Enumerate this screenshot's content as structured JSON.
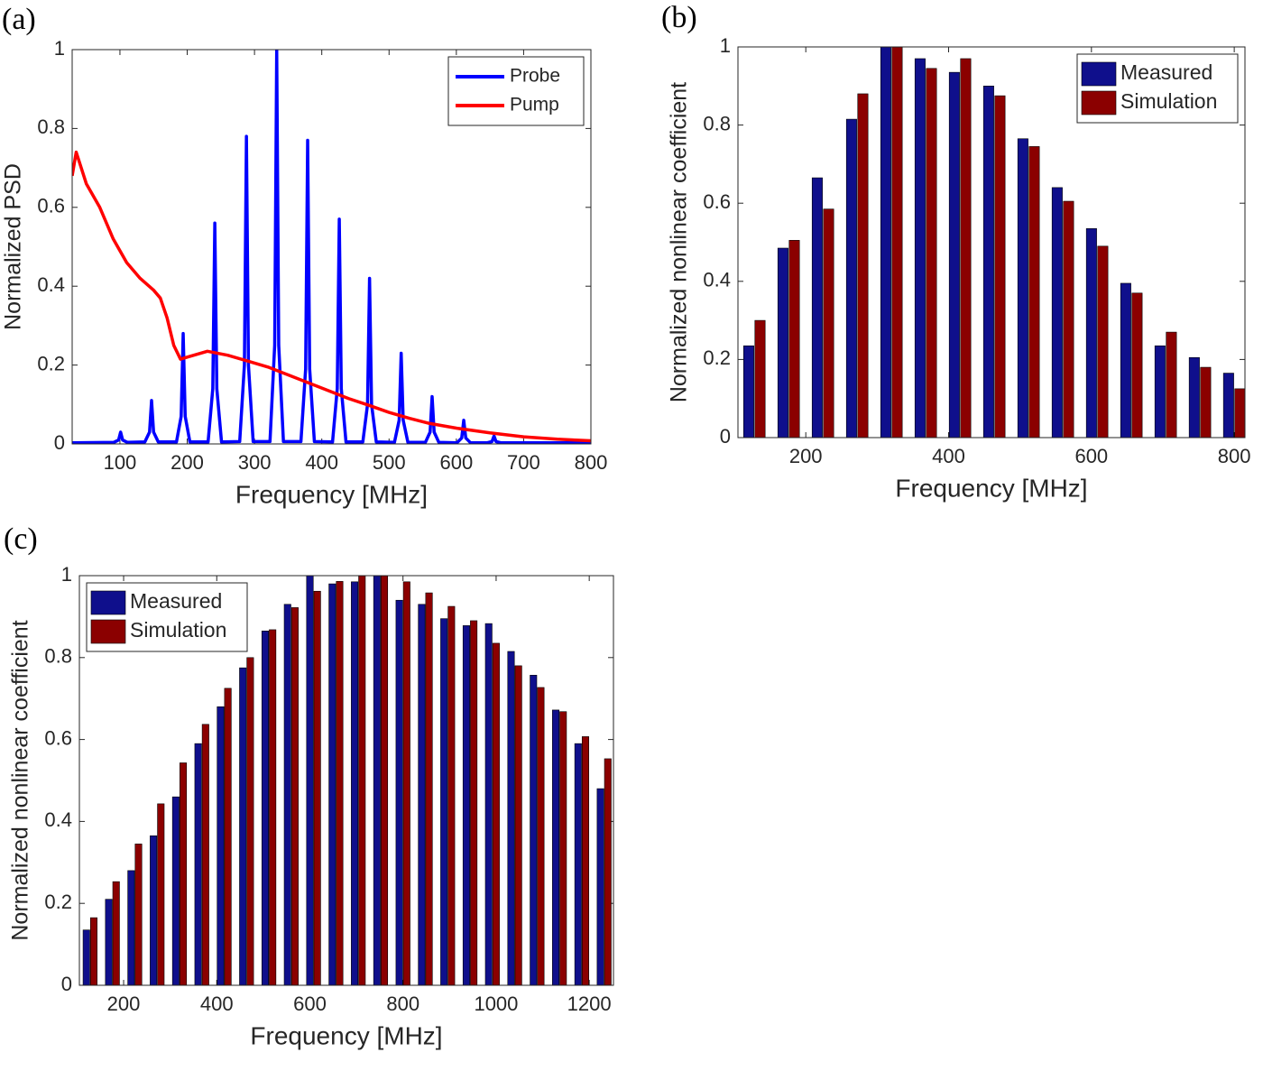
{
  "chart_data": [
    {
      "type": "line",
      "panel_label": "(a)",
      "xlabel": "Frequency [MHz]",
      "ylabel": "Normalized PSD",
      "xlim": [
        29,
        800
      ],
      "ylim": [
        0,
        1
      ],
      "xticks": [
        100,
        200,
        300,
        400,
        500,
        600,
        700,
        800
      ],
      "yticks": [
        0,
        0.2,
        0.4,
        0.6,
        0.8,
        1
      ],
      "legend": "upper right",
      "series": [
        {
          "name": "Probe",
          "color": "#0000ff",
          "x": [
            29,
            91,
            98,
            101,
            104,
            111,
            137,
            144,
            147,
            150,
            157,
            184,
            191,
            194,
            197,
            204,
            231,
            238,
            241,
            244,
            251,
            278,
            285,
            288,
            291,
            298,
            323,
            330,
            333,
            336,
            343,
            369,
            376,
            379,
            382,
            389,
            416,
            423,
            426,
            429,
            436,
            461,
            468,
            471,
            474,
            481,
            508,
            515,
            518,
            521,
            528,
            554,
            561,
            564,
            567,
            574,
            601,
            608,
            611,
            614,
            621,
            646,
            653,
            656,
            659,
            666,
            800
          ],
          "values": [
            0.003,
            0.004,
            0.01,
            0.03,
            0.01,
            0.004,
            0.005,
            0.03,
            0.11,
            0.03,
            0.005,
            0.005,
            0.07,
            0.28,
            0.07,
            0.005,
            0.005,
            0.14,
            0.56,
            0.14,
            0.005,
            0.006,
            0.2,
            0.78,
            0.2,
            0.006,
            0.006,
            0.25,
            1,
            0.25,
            0.006,
            0.006,
            0.19,
            0.77,
            0.19,
            0.006,
            0.005,
            0.14,
            0.57,
            0.14,
            0.005,
            0.005,
            0.1,
            0.42,
            0.1,
            0.005,
            0.004,
            0.06,
            0.23,
            0.06,
            0.004,
            0.004,
            0.03,
            0.12,
            0.03,
            0.004,
            0.003,
            0.015,
            0.06,
            0.015,
            0.003,
            0.003,
            0.006,
            0.02,
            0.006,
            0.003,
            0.003
          ]
        },
        {
          "name": "Pump",
          "color": "#ff0000",
          "x": [
            29,
            35,
            50,
            70,
            90,
            110,
            130,
            150,
            160,
            170,
            180,
            190,
            200,
            230,
            260,
            290,
            320,
            350,
            380,
            410,
            440,
            470,
            500,
            530,
            560,
            600,
            650,
            700,
            750,
            800
          ],
          "values": [
            0.68,
            0.74,
            0.66,
            0.6,
            0.52,
            0.46,
            0.42,
            0.39,
            0.37,
            0.32,
            0.25,
            0.215,
            0.22,
            0.235,
            0.225,
            0.21,
            0.195,
            0.175,
            0.155,
            0.135,
            0.115,
            0.098,
            0.08,
            0.065,
            0.052,
            0.04,
            0.028,
            0.018,
            0.012,
            0.008
          ]
        }
      ]
    },
    {
      "type": "bar",
      "panel_label": "(b)",
      "xlabel": "Frequency [MHz]",
      "ylabel": "Normalized nonlinear coefficient",
      "xlim": [
        105,
        815
      ],
      "ylim": [
        0,
        1
      ],
      "xticks": [
        200,
        400,
        600,
        800
      ],
      "yticks": [
        0,
        0.2,
        0.4,
        0.6,
        0.8,
        1
      ],
      "legend": "upper right",
      "x": [
        128,
        176,
        224,
        272,
        320,
        368,
        416,
        464,
        512,
        560,
        608,
        656,
        704,
        752,
        800
      ],
      "series": [
        {
          "name": "Measured",
          "color": "#0f0f8c",
          "values": [
            0.235,
            0.485,
            0.665,
            0.815,
            1,
            0.97,
            0.935,
            0.9,
            0.765,
            0.64,
            0.535,
            0.395,
            0.235,
            0.205,
            0.165
          ]
        },
        {
          "name": "Simulation",
          "color": "#8b0000",
          "values": [
            0.3,
            0.505,
            0.585,
            0.88,
            1,
            0.945,
            0.97,
            0.875,
            0.745,
            0.605,
            0.49,
            0.37,
            0.27,
            0.18,
            0.125
          ]
        }
      ]
    },
    {
      "type": "bar",
      "panel_label": "(c)",
      "xlabel": "Frequency [MHz]",
      "ylabel": "Normalized nonlinear coefficient",
      "xlim": [
        105,
        1252
      ],
      "ylim": [
        0,
        1
      ],
      "xticks": [
        200,
        400,
        600,
        800,
        1000,
        1200
      ],
      "yticks": [
        0,
        0.2,
        0.4,
        0.6,
        0.8,
        1
      ],
      "legend": "upper left",
      "x": [
        128,
        176,
        224,
        272,
        320,
        368,
        416,
        464,
        512,
        560,
        608,
        656,
        704,
        752,
        800,
        848,
        896,
        944,
        992,
        1040,
        1088,
        1136,
        1184,
        1232
      ],
      "series": [
        {
          "name": "Measured",
          "color": "#0f0f8c",
          "values": [
            0.135,
            0.21,
            0.28,
            0.365,
            0.46,
            0.59,
            0.68,
            0.775,
            0.865,
            0.93,
            1,
            0.98,
            0.985,
            1,
            0.94,
            0.93,
            0.895,
            0.878,
            0.883,
            0.815,
            0.757,
            0.672,
            0.59,
            0.48
          ]
        },
        {
          "name": "Simulation",
          "color": "#8b0000",
          "values": [
            0.165,
            0.253,
            0.345,
            0.443,
            0.543,
            0.637,
            0.725,
            0.8,
            0.868,
            0.922,
            0.962,
            0.986,
            1,
            1,
            0.985,
            0.958,
            0.925,
            0.89,
            0.835,
            0.78,
            0.727,
            0.668,
            0.607,
            0.553
          ]
        }
      ]
    }
  ]
}
